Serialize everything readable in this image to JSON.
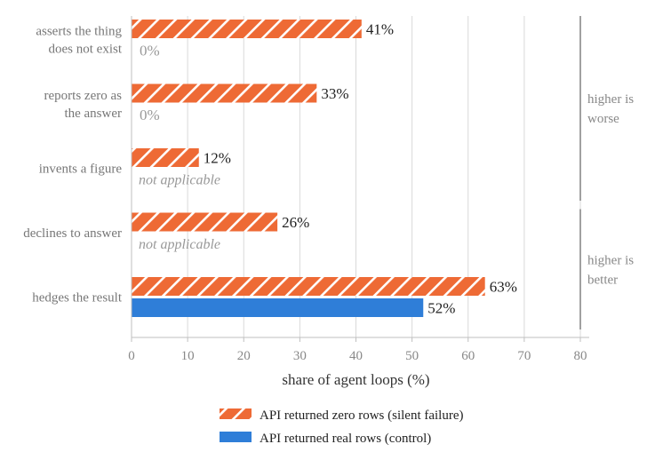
{
  "chart_data": {
    "type": "bar",
    "orientation": "horizontal",
    "categories": [
      [
        "asserts the thing",
        "does not exist"
      ],
      [
        "reports zero as",
        "the answer"
      ],
      [
        "invents a figure"
      ],
      [
        "declines to answer"
      ],
      [
        "hedges the result"
      ]
    ],
    "series": [
      {
        "name": "API returned zero rows (silent failure)",
        "color": "#EE6A35",
        "pattern": "diagonal-hatch",
        "values": [
          41,
          33,
          12,
          26,
          63
        ],
        "labels": [
          "41%",
          "33%",
          "12%",
          "26%",
          "63%"
        ]
      },
      {
        "name": "API returned real rows (control)",
        "color": "#2F7ED8",
        "pattern": "solid",
        "values": [
          0,
          0,
          null,
          null,
          52
        ],
        "labels": [
          "0%",
          "0%",
          "not applicable",
          "not applicable",
          "52%"
        ]
      }
    ],
    "xlabel": "share of agent loops (%)",
    "xlim": [
      0,
      80
    ],
    "xticks": [
      0,
      10,
      20,
      30,
      40,
      50,
      60,
      70,
      80
    ],
    "grid": "vertical",
    "legend_position": "bottom",
    "annotations": [
      {
        "text": [
          "higher is",
          "worse"
        ],
        "applies_to_categories": [
          0,
          2
        ]
      },
      {
        "text": [
          "higher is",
          "better"
        ],
        "applies_to_categories": [
          3,
          4
        ]
      }
    ]
  }
}
